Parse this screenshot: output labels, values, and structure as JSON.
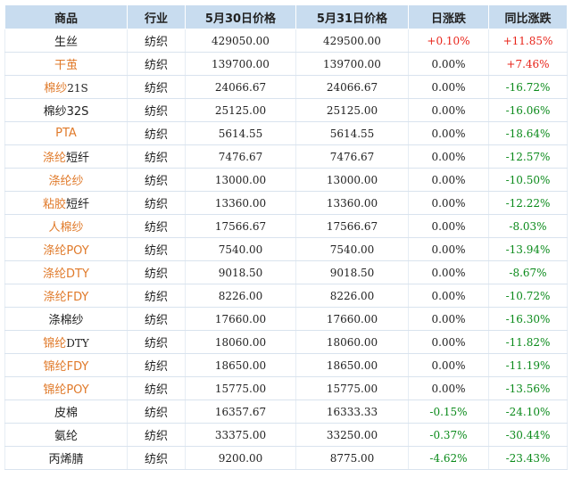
{
  "colors": {
    "header_bg": "#c8dcef",
    "link": "#e07a2a",
    "up": "#e8241a",
    "down": "#0a8a1a"
  },
  "headers": [
    "商品",
    "行业",
    "5月30日价格",
    "5月31日价格",
    "日涨跌",
    "同比涨跌"
  ],
  "rows": [
    {
      "name": "生丝",
      "link": false,
      "industry": "纺织",
      "p1": "429050.00",
      "p2": "429500.00",
      "daily": "+0.10%",
      "daily_dir": "up",
      "yoy": "+11.85%",
      "yoy_dir": "up"
    },
    {
      "name": "干茧",
      "link": true,
      "industry": "纺织",
      "p1": "139700.00",
      "p2": "139700.00",
      "daily": "0.00%",
      "daily_dir": "flat",
      "yoy": "+7.46%",
      "yoy_dir": "up"
    },
    {
      "name": "棉纱21S",
      "link": true,
      "link_part": "棉纱",
      "rest_part": "21S",
      "industry": "纺织",
      "p1": "24066.67",
      "p2": "24066.67",
      "daily": "0.00%",
      "daily_dir": "flat",
      "yoy": "-16.72%",
      "yoy_dir": "down"
    },
    {
      "name": "棉纱32S",
      "link": false,
      "industry": "纺织",
      "p1": "25125.00",
      "p2": "25125.00",
      "daily": "0.00%",
      "daily_dir": "flat",
      "yoy": "-16.06%",
      "yoy_dir": "down"
    },
    {
      "name": "PTA",
      "link": true,
      "industry": "纺织",
      "p1": "5614.55",
      "p2": "5614.55",
      "daily": "0.00%",
      "daily_dir": "flat",
      "yoy": "-18.64%",
      "yoy_dir": "down"
    },
    {
      "name": "涤纶短纤",
      "link": true,
      "link_part": "涤纶",
      "rest_part": "短纤",
      "industry": "纺织",
      "p1": "7476.67",
      "p2": "7476.67",
      "daily": "0.00%",
      "daily_dir": "flat",
      "yoy": "-12.57%",
      "yoy_dir": "down"
    },
    {
      "name": "涤纶纱",
      "link": true,
      "industry": "纺织",
      "p1": "13000.00",
      "p2": "13000.00",
      "daily": "0.00%",
      "daily_dir": "flat",
      "yoy": "-10.50%",
      "yoy_dir": "down"
    },
    {
      "name": "粘胶短纤",
      "link": true,
      "link_part": "粘胶",
      "rest_part": "短纤",
      "industry": "纺织",
      "p1": "13360.00",
      "p2": "13360.00",
      "daily": "0.00%",
      "daily_dir": "flat",
      "yoy": "-12.22%",
      "yoy_dir": "down"
    },
    {
      "name": "人棉纱",
      "link": true,
      "industry": "纺织",
      "p1": "17566.67",
      "p2": "17566.67",
      "daily": "0.00%",
      "daily_dir": "flat",
      "yoy": "-8.03%",
      "yoy_dir": "down"
    },
    {
      "name": "涤纶POY",
      "link": true,
      "industry": "纺织",
      "p1": "7540.00",
      "p2": "7540.00",
      "daily": "0.00%",
      "daily_dir": "flat",
      "yoy": "-13.94%",
      "yoy_dir": "down"
    },
    {
      "name": "涤纶DTY",
      "link": true,
      "industry": "纺织",
      "p1": "9018.50",
      "p2": "9018.50",
      "daily": "0.00%",
      "daily_dir": "flat",
      "yoy": "-8.67%",
      "yoy_dir": "down"
    },
    {
      "name": "涤纶FDY",
      "link": true,
      "industry": "纺织",
      "p1": "8226.00",
      "p2": "8226.00",
      "daily": "0.00%",
      "daily_dir": "flat",
      "yoy": "-10.72%",
      "yoy_dir": "down"
    },
    {
      "name": "涤棉纱",
      "link": false,
      "industry": "纺织",
      "p1": "17660.00",
      "p2": "17660.00",
      "daily": "0.00%",
      "daily_dir": "flat",
      "yoy": "-16.30%",
      "yoy_dir": "down"
    },
    {
      "name": "锦纶DTY",
      "link": true,
      "link_part": "锦纶",
      "rest_part": "DTY",
      "industry": "纺织",
      "p1": "18060.00",
      "p2": "18060.00",
      "daily": "0.00%",
      "daily_dir": "flat",
      "yoy": "-11.82%",
      "yoy_dir": "down"
    },
    {
      "name": "锦纶FDY",
      "link": true,
      "industry": "纺织",
      "p1": "18650.00",
      "p2": "18650.00",
      "daily": "0.00%",
      "daily_dir": "flat",
      "yoy": "-11.19%",
      "yoy_dir": "down"
    },
    {
      "name": "锦纶POY",
      "link": true,
      "industry": "纺织",
      "p1": "15775.00",
      "p2": "15775.00",
      "daily": "0.00%",
      "daily_dir": "flat",
      "yoy": "-13.56%",
      "yoy_dir": "down"
    },
    {
      "name": "皮棉",
      "link": false,
      "industry": "纺织",
      "p1": "16357.67",
      "p2": "16333.33",
      "daily": "-0.15%",
      "daily_dir": "down",
      "yoy": "-24.10%",
      "yoy_dir": "down"
    },
    {
      "name": "氨纶",
      "link": false,
      "industry": "纺织",
      "p1": "33375.00",
      "p2": "33250.00",
      "daily": "-0.37%",
      "daily_dir": "down",
      "yoy": "-30.44%",
      "yoy_dir": "down"
    },
    {
      "name": "丙烯腈",
      "link": false,
      "industry": "纺织",
      "p1": "9200.00",
      "p2": "8775.00",
      "daily": "-4.62%",
      "daily_dir": "down",
      "yoy": "-23.43%",
      "yoy_dir": "down"
    }
  ]
}
